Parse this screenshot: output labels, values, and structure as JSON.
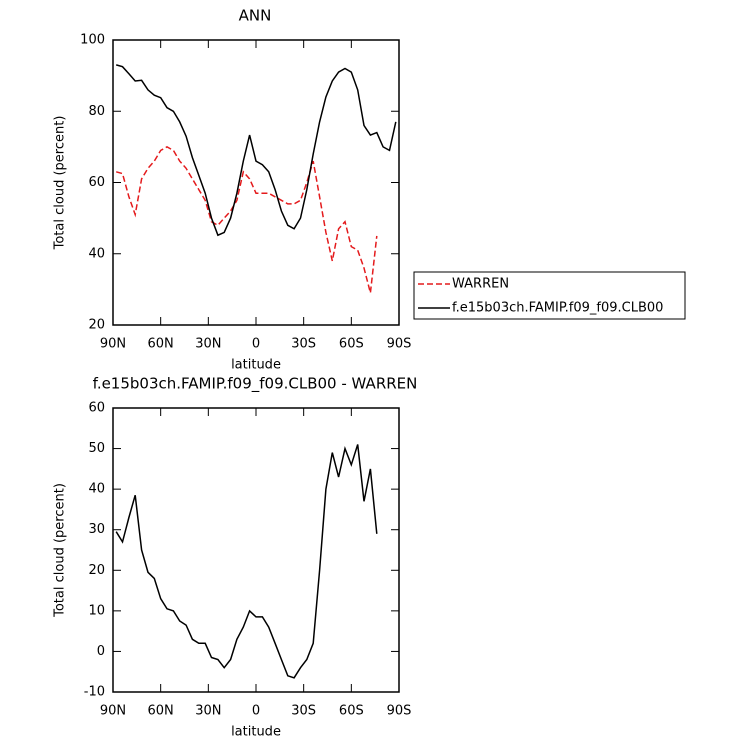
{
  "chart_data": [
    {
      "type": "line",
      "title": "ANN",
      "xlabel": "latitude",
      "ylabel": "Total cloud (percent)",
      "x": [
        88,
        84,
        80,
        76,
        72,
        68,
        64,
        60,
        56,
        52,
        48,
        44,
        40,
        36,
        32,
        28,
        24,
        20,
        16,
        12,
        8,
        4,
        0,
        -4,
        -8,
        -12,
        -16,
        -20,
        -24,
        -28,
        -32,
        -36,
        -40,
        -44,
        -48,
        -52,
        -56,
        -60,
        -64,
        -68,
        -72,
        -76,
        -80,
        -84,
        -88
      ],
      "series": [
        {
          "name": "WARREN",
          "color": "#e41a1c",
          "style": "dashed",
          "values": [
            63,
            62.5,
            56,
            51,
            61,
            64,
            66,
            69,
            70,
            69,
            66,
            64,
            61,
            58,
            55,
            49,
            48,
            50,
            52,
            55,
            63,
            61,
            57,
            57,
            57,
            56,
            55,
            54,
            54,
            55,
            60,
            66,
            56,
            46,
            38,
            47,
            49,
            42,
            41,
            36,
            29,
            45,
            null,
            null,
            null
          ]
        },
        {
          "name": "f.e15b03ch.FAMIP.f09_f09.CLB00",
          "color": "#000000",
          "style": "solid",
          "values": [
            93,
            92.5,
            90.5,
            88.5,
            88.7,
            86,
            84.5,
            83.8,
            81,
            80,
            77,
            73,
            67,
            62,
            57,
            50,
            45.2,
            46,
            50,
            57,
            66,
            73.3,
            66,
            65,
            63,
            58,
            52,
            48,
            47,
            50,
            58,
            68,
            77,
            84,
            88.5,
            91,
            92,
            91,
            86,
            76,
            73.3,
            74,
            70,
            69,
            77
          ]
        }
      ],
      "xlim": [
        90,
        -90
      ],
      "ylim": [
        20,
        100
      ],
      "xticks": [
        {
          "value": 90,
          "label": "90N"
        },
        {
          "value": 60,
          "label": "60N"
        },
        {
          "value": 30,
          "label": "30N"
        },
        0,
        {
          "value": -30,
          "label": "30S"
        },
        {
          "value": -60,
          "label": "60S"
        },
        {
          "value": -90,
          "label": "90S"
        }
      ],
      "yticks": [
        20,
        40,
        60,
        80,
        100
      ],
      "legend": "right"
    },
    {
      "type": "line",
      "title": "f.e15b03ch.FAMIP.f09_f09.CLB00 - WARREN",
      "xlabel": "latitude",
      "ylabel": "Total cloud (percent)",
      "x": [
        88,
        84,
        80,
        76,
        72,
        68,
        64,
        60,
        56,
        52,
        48,
        44,
        40,
        36,
        32,
        28,
        24,
        20,
        16,
        12,
        8,
        4,
        0,
        -4,
        -8,
        -12,
        -16,
        -20,
        -24,
        -28,
        -32,
        -36,
        -40,
        -44,
        -48,
        -52,
        -56,
        -60,
        -64,
        -68,
        -72,
        -76
      ],
      "series": [
        {
          "color": "#000000",
          "style": "solid",
          "values": [
            29.5,
            27,
            33,
            38.5,
            25,
            19.5,
            18,
            13,
            10.5,
            10,
            7.5,
            6.5,
            3,
            2,
            2,
            -1.5,
            -2,
            -4,
            -2,
            3,
            6,
            10,
            8.5,
            8.5,
            6,
            2,
            -2,
            -6,
            -6.5,
            -4,
            -2,
            2,
            20,
            40,
            49,
            43,
            50,
            46,
            51,
            37,
            45,
            29
          ]
        }
      ],
      "xlim": [
        90,
        -90
      ],
      "ylim": [
        -10,
        60
      ],
      "xticks": [
        {
          "value": 90,
          "label": "90N"
        },
        {
          "value": 60,
          "label": "60N"
        },
        {
          "value": 30,
          "label": "30N"
        },
        0,
        {
          "value": -30,
          "label": "30S"
        },
        {
          "value": -60,
          "label": "60S"
        },
        {
          "value": -90,
          "label": "90S"
        }
      ],
      "yticks": [
        -10,
        0,
        10,
        20,
        30,
        40,
        50,
        60
      ]
    }
  ]
}
